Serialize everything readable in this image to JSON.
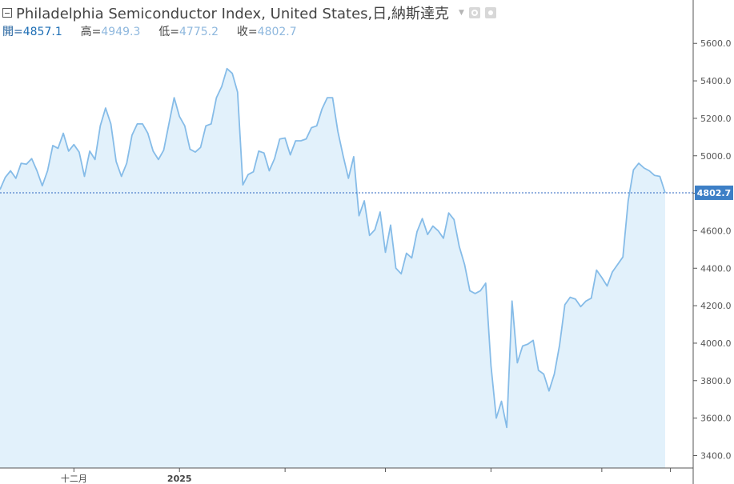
{
  "header": {
    "title": "Philadelphia Semiconductor Index, United States,日,納斯達克",
    "open_label": "開=",
    "open_value": "4857.1",
    "high_label": "高=",
    "high_value": "4949.3",
    "low_label": "低=",
    "low_value": "4775.2",
    "close_label": "收=",
    "close_value": "4802.7"
  },
  "colors": {
    "line": "#86bce8",
    "fill": "#e2f1fb",
    "last_price_line": "#2e66c2",
    "last_price_badge": "#3d7fc6"
  },
  "chart_data": {
    "type": "area",
    "title": "Philadelphia Semiconductor Index, United States,日,納斯達克",
    "xlabel": "",
    "ylabel": "",
    "ylim": [
      3250,
      5780
    ],
    "y_ticks": [
      3400,
      3600,
      3800,
      4000,
      4200,
      4400,
      4600,
      4800,
      5000,
      5200,
      5400,
      5600
    ],
    "y_tick_labels": [
      "3400.0",
      "3600.0",
      "3800.0",
      "4000.0",
      "4200.0",
      "4400.0",
      "4600.0",
      "4800.0",
      "5000.0",
      "5200.0",
      "5400.0",
      "5600.0"
    ],
    "x_tick_labels": [
      {
        "label": "十二月",
        "index": 14
      },
      {
        "label": "2025",
        "index": 34
      },
      {
        "label": "",
        "index": 54
      },
      {
        "label": "",
        "index": 73
      },
      {
        "label": "",
        "index": 93
      },
      {
        "label": "",
        "index": 114
      },
      {
        "label": "",
        "index": 127
      }
    ],
    "last_price": 4802.7,
    "last_price_label": "4802.7",
    "grid": false,
    "series": [
      {
        "name": "Philadelphia Semiconductor Index",
        "values": [
          4820,
          4885,
          4920,
          4880,
          4960,
          4955,
          4985,
          4920,
          4840,
          4920,
          5055,
          5040,
          5120,
          5025,
          5060,
          5020,
          4890,
          5025,
          4980,
          5160,
          5255,
          5170,
          4970,
          4890,
          4960,
          5110,
          5170,
          5170,
          5120,
          5025,
          4980,
          5030,
          5170,
          5310,
          5210,
          5160,
          5035,
          5020,
          5045,
          5160,
          5170,
          5310,
          5370,
          5465,
          5440,
          5340,
          4845,
          4900,
          4915,
          5025,
          5015,
          4920,
          4985,
          5090,
          5095,
          5005,
          5080,
          5080,
          5090,
          5150,
          5160,
          5250,
          5310,
          5310,
          5130,
          5000,
          4880,
          4995,
          4680,
          4760,
          4575,
          4605,
          4700,
          4485,
          4630,
          4400,
          4370,
          4480,
          4455,
          4595,
          4665,
          4580,
          4625,
          4600,
          4560,
          4695,
          4660,
          4515,
          4420,
          4280,
          4265,
          4280,
          4320,
          3880,
          3600,
          3690,
          3550,
          4225,
          3895,
          3985,
          3995,
          4015,
          3855,
          3835,
          3745,
          3835,
          3990,
          4205,
          4245,
          4235,
          4195,
          4225,
          4240,
          4390,
          4350,
          4305,
          4380,
          4420,
          4460,
          4760,
          4925,
          4960,
          4935,
          4920,
          4895,
          4890,
          4802.7
        ]
      }
    ]
  }
}
